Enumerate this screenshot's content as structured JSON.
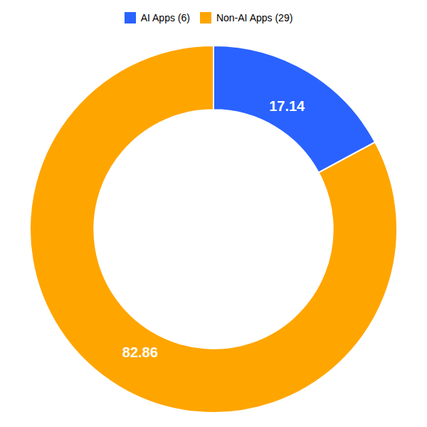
{
  "chart_data": {
    "type": "pie",
    "categories": [
      "AI Apps (6)",
      "Non-AI Apps (29)"
    ],
    "values": [
      17.14,
      82.86
    ],
    "colors": [
      "#2962FF",
      "#FFA500"
    ],
    "data_labels": true,
    "legend": "top"
  }
}
